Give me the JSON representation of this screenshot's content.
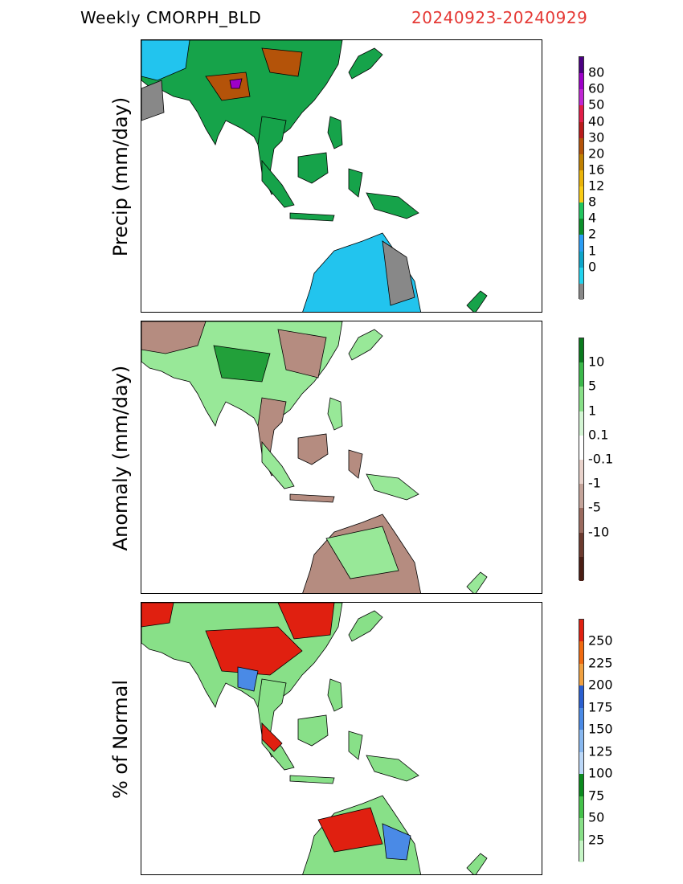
{
  "header": {
    "left_title": "Weekly CMORPH_BLD",
    "date_range": "20240923-20240929"
  },
  "panels": [
    {
      "id": "precip",
      "ylabel": "Precip (mm/day)",
      "colorbar": {
        "colors": [
          "#888888",
          "#22d3ee",
          "#0ea5c9",
          "#2a9df4",
          "#0a8f2a",
          "#22c55e",
          "#facc15",
          "#eab308",
          "#c08000",
          "#b45309",
          "#b91c1c",
          "#e11d48",
          "#c026d3",
          "#9d00c8",
          "#4b0082"
        ],
        "labels": [
          "0",
          "1",
          "2",
          "4",
          "8",
          "12",
          "16",
          "20",
          "30",
          "40",
          "50",
          "60",
          "80"
        ]
      },
      "map_colors": {
        "land": "#22c4ee",
        "wet": "#16a34a",
        "heavy": "#b45309",
        "extreme": "#9d00c8",
        "dry": "#888888"
      }
    },
    {
      "id": "anomaly",
      "ylabel": "Anomaly (mm/day)",
      "colorbar": {
        "colors": [
          "#4a1e14",
          "#6b3a2e",
          "#9a6a5e",
          "#c4a49a",
          "#e9d3cc",
          "#ffffff",
          "#d4f5d4",
          "#88e088",
          "#3bb84a",
          "#0a7a1e"
        ],
        "labels": [
          "-10",
          "-5",
          "-1",
          "-0.1",
          "0.1",
          "1",
          "5",
          "10"
        ]
      },
      "map_colors": {
        "land": "#98e898",
        "wet": "#22a03a",
        "dry": "#b58c80"
      }
    },
    {
      "id": "percent",
      "ylabel": "% of Normal",
      "colorbar": {
        "colors": [
          "#c6f5c6",
          "#88e088",
          "#44c24a",
          "#0a8a1e",
          "#bcd8f8",
          "#88b8f0",
          "#4a8ae6",
          "#2a5fd0",
          "#f0a040",
          "#f06a10",
          "#e02010"
        ],
        "labels": [
          "25",
          "50",
          "75",
          "100",
          "125",
          "150",
          "175",
          "200",
          "225",
          "250"
        ]
      },
      "map_colors": {
        "land": "#88e088",
        "wet": "#e02010",
        "mid": "#4a8ae6",
        "dry": "#c6f5c6"
      }
    }
  ]
}
